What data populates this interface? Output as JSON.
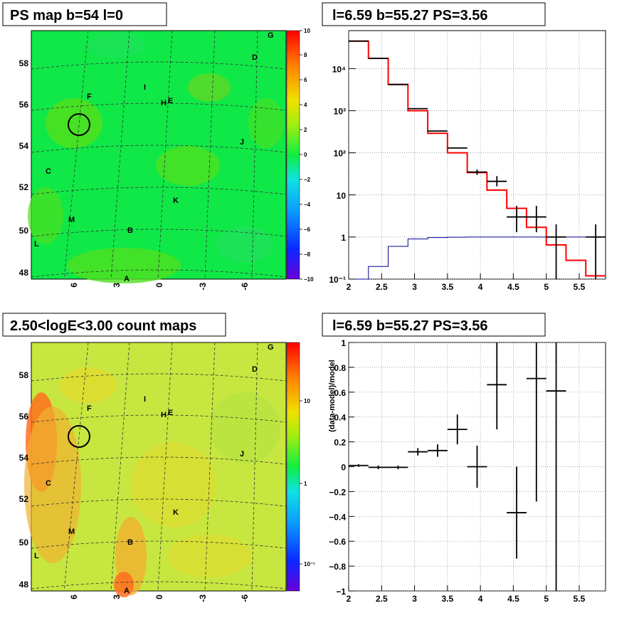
{
  "chart_data": [
    {
      "type": "heatmap",
      "title": "PS map b=54 l=0",
      "x_tick_labels": [
        "6",
        "3",
        "0",
        "-3",
        "-6"
      ],
      "y_tick_labels": [
        "58",
        "56",
        "54",
        "52",
        "50",
        "48"
      ],
      "colorbar": {
        "scale": "linear",
        "range": [
          -10,
          10
        ],
        "tick_labels": [
          "10",
          "8",
          "6",
          "4",
          "2",
          "0",
          "−2",
          "−4",
          "−6",
          "−8",
          "−10"
        ]
      },
      "source_labels": [
        "G",
        "D",
        "F",
        "I",
        "H",
        "E",
        "J",
        "C",
        "K",
        "M",
        "B",
        "L",
        "A"
      ],
      "circle": {
        "l": 6.59,
        "b": 55.27
      }
    },
    {
      "type": "line",
      "title": "l=6.59 b=55.27 PS=3.56",
      "yscale": "log",
      "xlim": [
        2,
        5.9
      ],
      "ylim": [
        0.1,
        80000
      ],
      "x_tick_labels": [
        "2",
        "2.5",
        "3",
        "3.5",
        "4",
        "4.5",
        "5",
        "5.5"
      ],
      "y_tick_labels": [
        "10⁻¹",
        "1",
        "10",
        "10²",
        "10³",
        "10⁴"
      ],
      "bin_edges": [
        2.0,
        2.3,
        2.6,
        2.9,
        3.2,
        3.5,
        3.8,
        4.1,
        4.4,
        4.7,
        5.0,
        5.3,
        5.6,
        5.9
      ],
      "series": [
        {
          "color": "#ff0000",
          "values": [
            45000,
            17500,
            4200,
            1000,
            290,
            100,
            34,
            13,
            4.8,
            1.7,
            0.65,
            0.28,
            0.12
          ]
        },
        {
          "color": "#000099",
          "values": [
            0.1,
            0.2,
            0.6,
            0.9,
            0.97,
            0.99,
            1.0,
            1.0,
            1.0,
            1.0,
            1.0,
            1.0,
            1.0
          ]
        }
      ],
      "points": [
        {
          "x": 2.15,
          "y": 45000
        },
        {
          "x": 2.45,
          "y": 17500
        },
        {
          "x": 2.75,
          "y": 4200
        },
        {
          "x": 3.05,
          "y": 1120
        },
        {
          "x": 3.35,
          "y": 330
        },
        {
          "x": 3.65,
          "y": 130
        },
        {
          "x": 3.95,
          "y": 35,
          "lo": 30,
          "hi": 40
        },
        {
          "x": 4.25,
          "y": 21,
          "lo": 16,
          "hi": 28
        },
        {
          "x": 4.55,
          "y": 3,
          "lo": 1.3,
          "hi": 5.5
        },
        {
          "x": 4.85,
          "y": 3,
          "lo": 1.3,
          "hi": 5.5
        },
        {
          "x": 5.15,
          "y": 1,
          "lo": 0.1,
          "hi": 2
        },
        {
          "x": 5.75,
          "y": 1,
          "lo": 0.1,
          "hi": 2
        }
      ]
    },
    {
      "type": "heatmap",
      "title": "2.50<logE<3.00 count maps",
      "x_tick_labels": [
        "6",
        "3",
        "0",
        "-3",
        "-6"
      ],
      "y_tick_labels": [
        "58",
        "56",
        "54",
        "52",
        "50",
        "48"
      ],
      "colorbar": {
        "scale": "log",
        "tick_labels": [
          "10",
          "1",
          "10⁻¹"
        ]
      },
      "source_labels": [
        "G",
        "D",
        "F",
        "I",
        "H",
        "E",
        "J",
        "C",
        "K",
        "M",
        "B",
        "L",
        "A"
      ],
      "circle": {
        "l": 6.59,
        "b": 55.27
      }
    },
    {
      "type": "scatter",
      "title": "l=6.59 b=55.27 PS=3.56",
      "ylabel": "(data-model)/model",
      "xlim": [
        2,
        5.9
      ],
      "ylim": [
        -1,
        1
      ],
      "x_tick_labels": [
        "2",
        "2.5",
        "3",
        "3.5",
        "4",
        "4.5",
        "5",
        "5.5"
      ],
      "y_tick_labels": [
        "1",
        "0.8",
        "0.6",
        "0.4",
        "0.2",
        "0",
        "−0.2",
        "−0.4",
        "−0.6",
        "−0.8",
        "−1"
      ],
      "points": [
        {
          "x": 2.15,
          "y": 0.01,
          "lo": 0.0,
          "hi": 0.02
        },
        {
          "x": 2.45,
          "y": -0.005,
          "lo": -0.02,
          "hi": 0.01
        },
        {
          "x": 2.75,
          "y": -0.005,
          "lo": -0.02,
          "hi": 0.01
        },
        {
          "x": 3.05,
          "y": 0.12,
          "lo": 0.09,
          "hi": 0.15
        },
        {
          "x": 3.35,
          "y": 0.13,
          "lo": 0.08,
          "hi": 0.18
        },
        {
          "x": 3.65,
          "y": 0.3,
          "lo": 0.18,
          "hi": 0.42
        },
        {
          "x": 3.95,
          "y": 0.0,
          "lo": -0.17,
          "hi": 0.17
        },
        {
          "x": 4.25,
          "y": 0.66,
          "lo": 0.3,
          "hi": 1.0
        },
        {
          "x": 4.55,
          "y": -0.37,
          "lo": -0.74,
          "hi": 0.0
        },
        {
          "x": 4.85,
          "y": 0.71,
          "lo": -0.28,
          "hi": 1.0
        },
        {
          "x": 5.15,
          "y": 0.61,
          "lo": -1.0,
          "hi": 1.0
        }
      ]
    }
  ]
}
